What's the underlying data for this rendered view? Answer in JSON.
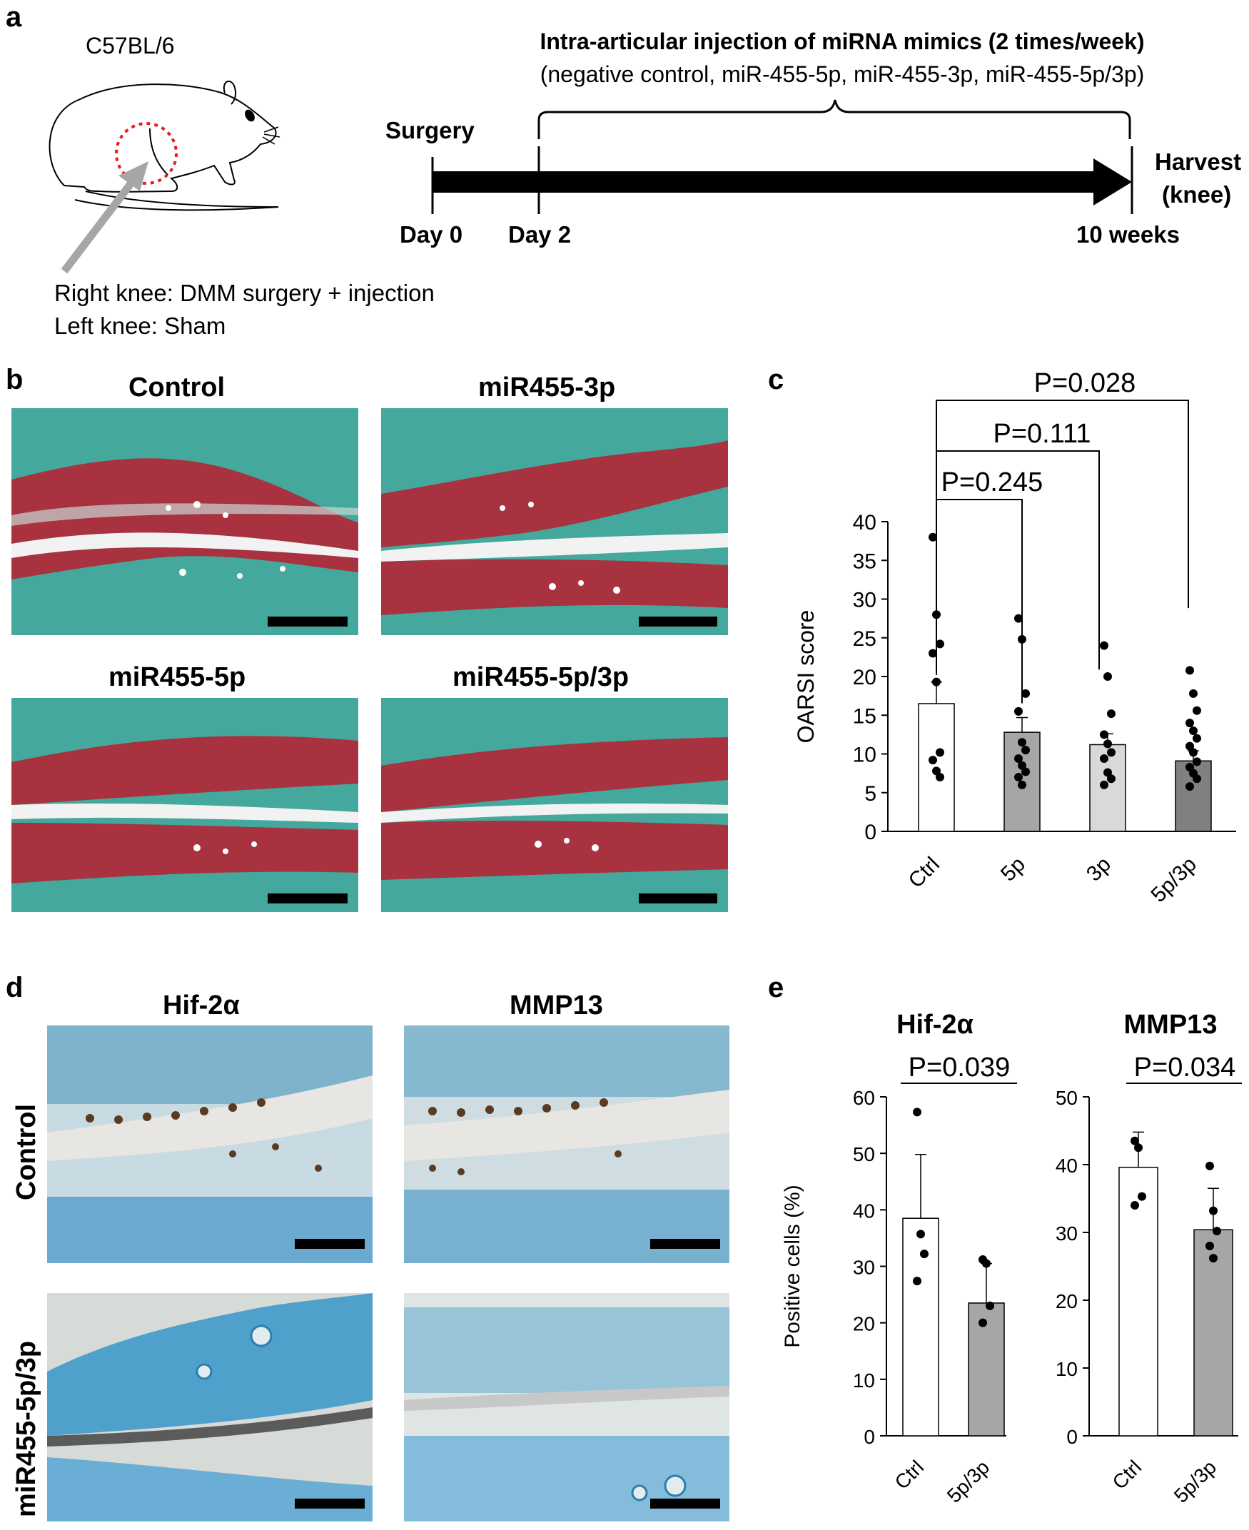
{
  "panel_a": {
    "label": "a",
    "strain": "C57BL/6",
    "injection_title": "Intra-articular injection of miRNA mimics (2 times/week)",
    "injection_groups": "(negative control, miR-455-5p, miR-455-3p, miR-455-5p/3p)",
    "surgery_label": "Surgery",
    "harvest_label_1": "Harvest",
    "harvest_label_2": "(knee)",
    "day0": "Day 0",
    "day2": "Day 2",
    "week10": "10 weeks",
    "right_knee": "Right knee: DMM surgery + injection",
    "left_knee": "Left knee: Sham"
  },
  "panel_b": {
    "label": "b",
    "titles": [
      "Control",
      "miR455-3p",
      "miR455-5p",
      "miR455-5p/3p"
    ]
  },
  "panel_d": {
    "label": "d",
    "col_titles": [
      "Hif-2α",
      "MMP13"
    ],
    "row_titles": [
      "Control",
      "miR455-5p/3p"
    ]
  },
  "chart_data": [
    {
      "id": "c",
      "panel_label": "c",
      "type": "bar",
      "categories": [
        "Ctrl",
        "5p",
        "3p",
        "5p/3p"
      ],
      "values": [
        16.5,
        12.8,
        11.2,
        9.1
      ],
      "errors": [
        2.8,
        1.9,
        1.4,
        1.3
      ],
      "colors": [
        "#ffffff",
        "#a6a6a6",
        "#d9d9d9",
        "#808080"
      ],
      "points": [
        [
          38,
          28,
          24.2,
          23,
          19.3,
          10.2,
          9.2,
          7.8,
          7
        ],
        [
          27.5,
          24.8,
          17.8,
          15.5,
          11.5,
          10.5,
          9.4,
          8.5,
          7.7,
          7,
          6
        ],
        [
          24,
          20,
          15.2,
          12.5,
          11.3,
          10.2,
          9.4,
          7.6,
          6.8,
          6
        ],
        [
          20.8,
          17.8,
          15.6,
          14,
          13,
          12,
          11,
          10.2,
          9,
          8.3,
          7.5,
          6.8,
          5.8
        ]
      ],
      "ylabel": "OARSI score",
      "ylim": [
        0,
        40
      ],
      "yticks": [
        0,
        5,
        10,
        15,
        20,
        25,
        30,
        35,
        40
      ],
      "comparisons": [
        "P=0.245",
        "P=0.111",
        "P=0.028"
      ]
    },
    {
      "id": "e1",
      "panel_label": "e",
      "type": "bar",
      "title": "Hif-2α",
      "categories": [
        "Ctrl",
        "5p/3p"
      ],
      "values": [
        38.5,
        23.5
      ],
      "errors": [
        11.3,
        7
      ],
      "colors": [
        "#ffffff",
        "#a6a6a6"
      ],
      "points": [
        [
          57.3,
          35.7,
          32.2,
          27.4
        ],
        [
          31.2,
          30.5,
          23,
          20
        ]
      ],
      "ylabel": "Positive cells (%)",
      "ylim": [
        0,
        60
      ],
      "yticks": [
        0,
        10,
        20,
        30,
        40,
        50,
        60
      ],
      "comparison": "P=0.039"
    },
    {
      "id": "e2",
      "type": "bar",
      "title": "MMP13",
      "categories": [
        "Ctrl",
        "5p/3p"
      ],
      "values": [
        39.6,
        30.4
      ],
      "errors": [
        5.2,
        6.1
      ],
      "colors": [
        "#ffffff",
        "#a6a6a6"
      ],
      "points": [
        [
          43.5,
          42.5,
          35.3,
          34
        ],
        [
          39.8,
          33.2,
          30.2,
          28,
          26.2
        ]
      ],
      "ylim": [
        0,
        50
      ],
      "yticks": [
        0,
        10,
        20,
        30,
        40,
        50
      ],
      "comparison": "P=0.034"
    }
  ]
}
